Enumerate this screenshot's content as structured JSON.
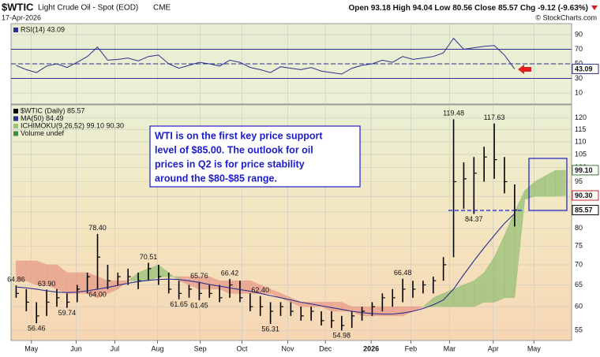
{
  "header": {
    "symbol": "$WTIC",
    "title": "Light Crude Oil - Spot (EOD)",
    "exchange": "CME",
    "date": "17-Apr-2026",
    "quote": [
      {
        "label": "Open",
        "value": 93.18
      },
      {
        "label": "High",
        "value": 94.04
      },
      {
        "label": "Low",
        "value": 80.56
      },
      {
        "label": "Close",
        "value": 85.57
      },
      {
        "label": "Chg",
        "value": "-9.12 (-9.63%)"
      }
    ],
    "credit": "© StockCharts.com"
  },
  "annotation": {
    "lines": [
      "WTI is on the first key price support",
      "level of $85.00.  The outlook for oil",
      "prices in Q2 is for price stability",
      "around the $80-$85 range."
    ]
  },
  "chart_data": [
    {
      "type": "line",
      "xlim": [
        -0.5,
        54.6
      ],
      "ylim": [
        -5,
        105
      ],
      "yticks": [
        10,
        30,
        50,
        70,
        90
      ],
      "levels": [
        70,
        50,
        30
      ],
      "grid": true,
      "series": [
        {
          "name": "RSI(14) 43.09",
          "color": "#2b2f8f",
          "values": [
            48,
            42,
            38,
            47,
            50,
            45,
            52,
            60,
            73,
            55,
            56,
            58,
            54,
            60,
            62,
            50,
            44,
            48,
            52,
            50,
            47,
            55,
            52,
            45,
            42,
            38,
            46,
            44,
            42,
            45,
            40,
            38,
            36,
            44,
            48,
            50,
            55,
            52,
            60,
            56,
            58,
            60,
            65,
            85,
            70,
            72,
            74,
            75,
            62,
            43.09
          ]
        }
      ],
      "tags": [
        {
          "value": 43.09,
          "label": "43.09",
          "color": "#2b2f8f"
        }
      ]
    },
    {
      "type": "ohlc",
      "log": true,
      "xlim": [
        -0.5,
        54.6
      ],
      "ylim": [
        53,
        126
      ],
      "grid": true,
      "yticks": [
        55,
        60,
        65,
        70,
        75,
        80,
        85,
        90,
        95,
        100,
        105,
        110,
        115,
        120
      ],
      "xticks": [
        {
          "value": 1.5,
          "label": "May"
        },
        {
          "value": 5.9,
          "label": "Jun"
        },
        {
          "value": 9.7,
          "label": "Jul"
        },
        {
          "value": 13.9,
          "label": "Aug"
        },
        {
          "value": 18.1,
          "label": "Sep"
        },
        {
          "value": 22.2,
          "label": "Oct"
        },
        {
          "value": 26.7,
          "label": "Nov"
        },
        {
          "value": 30.4,
          "label": "Dec"
        },
        {
          "value": 34.9,
          "label": "2026"
        },
        {
          "value": 38.8,
          "label": "Feb"
        },
        {
          "value": 42.6,
          "label": "Mar"
        },
        {
          "value": 46.9,
          "label": "Apr"
        },
        {
          "value": 50.9,
          "label": "May"
        }
      ],
      "series": [
        {
          "name": "$WTIC (Daily) 85.57",
          "color": "#000000",
          "high": [
            64.86,
            64,
            61,
            63.9,
            64,
            63,
            65,
            68,
            78.4,
            70,
            68,
            69,
            68,
            70.51,
            70,
            68,
            66,
            65,
            65.76,
            65,
            65,
            66.42,
            66,
            63,
            62.4,
            61,
            61,
            61,
            60,
            60,
            59,
            59,
            58,
            59,
            60,
            61,
            63,
            64,
            66.48,
            66,
            66,
            67,
            72,
            119.48,
            102,
            104,
            108,
            117.63,
            104,
            94.04
          ],
          "low": [
            62,
            59,
            56.46,
            58,
            60,
            59.74,
            61,
            63,
            64,
            64,
            65,
            65,
            64,
            66,
            65,
            63,
            61.65,
            62,
            61.45,
            62,
            61,
            62,
            61,
            59,
            58,
            56.31,
            58,
            58,
            57,
            57,
            56,
            55.5,
            54.98,
            55.5,
            57,
            58,
            59,
            60,
            61,
            62,
            63,
            63,
            66,
            72,
            86,
            84.37,
            95,
            96,
            91,
            80.56
          ],
          "close": [
            63,
            61,
            58,
            61,
            62,
            61,
            64,
            67,
            72,
            66,
            67,
            67,
            66,
            69,
            67,
            64,
            63,
            64,
            63,
            63,
            62,
            65,
            62,
            60,
            60,
            59,
            60,
            59,
            58,
            59,
            57,
            57,
            56,
            58,
            59,
            60,
            62,
            62,
            64,
            64,
            65,
            66,
            70,
            95,
            96,
            98,
            104,
            103,
            95,
            85.57
          ]
        },
        {
          "name": "MA(50) 84.49",
          "color": "#2b2f8f",
          "values": [
            64.5,
            64.3,
            64.0,
            63.6,
            63.3,
            63.2,
            63.3,
            63.6,
            64.0,
            64.4,
            64.9,
            65.4,
            65.8,
            66.1,
            66.3,
            66.4,
            66.3,
            66.0,
            65.6,
            65.1,
            64.7,
            64.3,
            63.9,
            63.5,
            63.0,
            62.5,
            62.0,
            61.5,
            61.0,
            60.6,
            60.2,
            59.8,
            59.4,
            59.0,
            58.7,
            58.5,
            58.4,
            58.4,
            58.6,
            59.0,
            59.6,
            60.4,
            61.5,
            64.0,
            67.5,
            71.0,
            74.5,
            78.0,
            81.5,
            84.49
          ]
        },
        {
          "name": "ICHIMOKU(9,26,52) 99.10 90.30",
          "colors": [
            "#9cc27a",
            "#e99f8c"
          ],
          "span_a": [
            66,
            66,
            65,
            65,
            64,
            63,
            63,
            63,
            62,
            63,
            64,
            66,
            68,
            69,
            70,
            68,
            66,
            65,
            64,
            64,
            64,
            63,
            63,
            63,
            63,
            63,
            62,
            61,
            60,
            60,
            60,
            59,
            59,
            59,
            58,
            58,
            58,
            58,
            58,
            59,
            60,
            62,
            63,
            64,
            65,
            66,
            68,
            72,
            78,
            85,
            92,
            95,
            97,
            99,
            99.1
          ],
          "span_b": [
            71,
            71,
            71,
            70,
            70,
            68,
            68,
            68,
            67,
            66,
            66,
            66,
            66,
            66,
            67,
            67,
            67,
            67,
            67,
            67,
            66,
            66,
            66,
            66,
            65,
            64,
            63,
            62,
            61,
            61,
            61,
            61,
            61,
            60,
            60,
            60,
            60,
            60,
            60,
            60,
            60,
            60,
            60,
            60,
            60,
            60,
            61,
            61,
            62,
            62,
            89,
            90,
            90,
            90,
            90.3
          ]
        },
        {
          "name": "Volume undef",
          "color": "#3d8f3d"
        }
      ],
      "extremes": [
        {
          "x": 0,
          "value": 64.86,
          "label": "64.86"
        },
        {
          "x": 3,
          "value": 63.9,
          "label": "63.90"
        },
        {
          "x": 2,
          "value": 56.46,
          "label": "56.46"
        },
        {
          "x": 5,
          "value": 59.74,
          "label": "59.74"
        },
        {
          "x": 8,
          "value": 78.4,
          "label": "78.40"
        },
        {
          "x": 8,
          "value": 64,
          "label": "64.00"
        },
        {
          "x": 13,
          "value": 70.51,
          "label": "70.51"
        },
        {
          "x": 16,
          "value": 61.65,
          "label": "61.65"
        },
        {
          "x": 18,
          "value": 65.76,
          "label": "65.76"
        },
        {
          "x": 18,
          "value": 61.45,
          "label": "61.45"
        },
        {
          "x": 21,
          "value": 66.42,
          "label": "66.42"
        },
        {
          "x": 24,
          "value": 62.4,
          "label": "62.40"
        },
        {
          "x": 25,
          "value": 56.31,
          "label": "56.31"
        },
        {
          "x": 32,
          "value": 54.98,
          "label": "54.98"
        },
        {
          "x": 38,
          "value": 66.48,
          "label": "66.48"
        },
        {
          "x": 43,
          "value": 119.48,
          "label": "119.48"
        },
        {
          "x": 47,
          "value": 117.63,
          "label": "117.63"
        },
        {
          "x": 45,
          "value": 84.37,
          "label": "84.37"
        }
      ],
      "tags": [
        {
          "value": 99.1,
          "label": "99.10",
          "color": "#3a7d2a"
        },
        {
          "value": 90.3,
          "label": "90.30",
          "color": "#d02020"
        },
        {
          "value": 85.57,
          "label": "85.57",
          "color": "#000000"
        }
      ]
    }
  ]
}
